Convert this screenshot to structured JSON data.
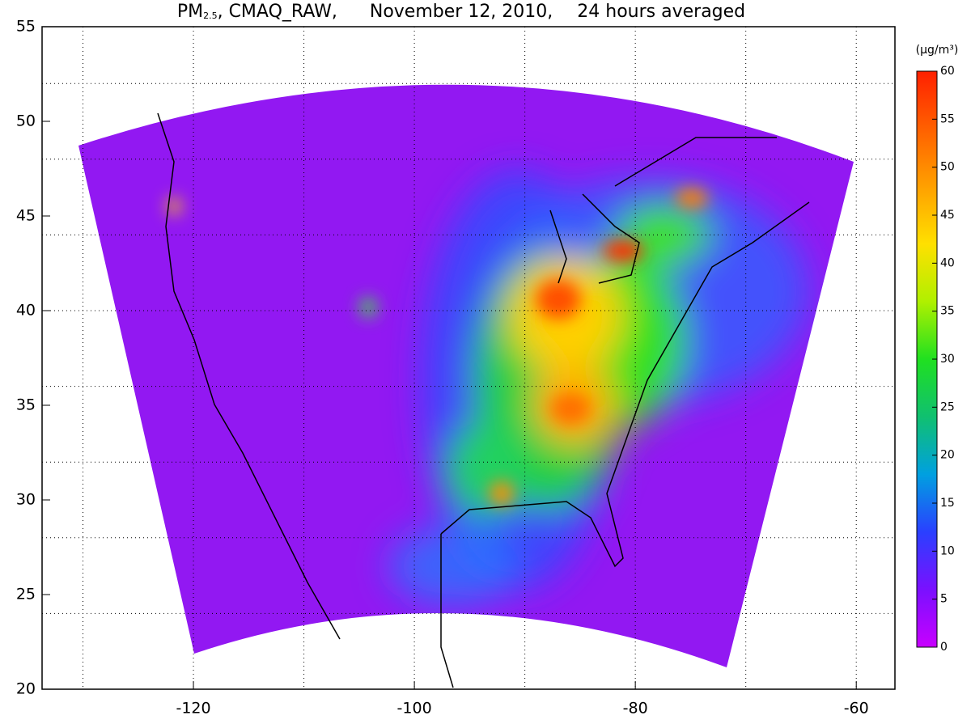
{
  "chart_data": {
    "type": "map",
    "title_variable": "PM",
    "title_subscript": "2.5",
    "title_model": ", CMAQ_RAW,",
    "title_date": "November 12, 2010,",
    "title_period": "24 hours averaged",
    "xlim": [
      -133.7,
      -56.5
    ],
    "ylim": [
      20,
      55
    ],
    "xticks": [
      -120,
      -100,
      -80,
      -60
    ],
    "yticks": [
      20,
      25,
      30,
      35,
      40,
      45,
      50,
      55
    ],
    "xgrid": [
      -130,
      -120,
      -110,
      -100,
      -90,
      -80,
      -70,
      -60
    ],
    "ygrid": [
      24,
      28,
      32,
      36,
      40,
      44,
      48,
      52
    ],
    "colorbar": {
      "label": "(µg/m³)",
      "lim": [
        0,
        60
      ],
      "ticks": [
        0,
        5,
        10,
        15,
        20,
        25,
        30,
        35,
        40,
        45,
        50,
        55,
        60
      ],
      "colors": [
        "#c800ff",
        "#7a10ff",
        "#2a40ff",
        "#00a0e0",
        "#10c070",
        "#20e020",
        "#b0f000",
        "#ffe000",
        "#ffa000",
        "#ff6000",
        "#ff2000"
      ]
    }
  }
}
